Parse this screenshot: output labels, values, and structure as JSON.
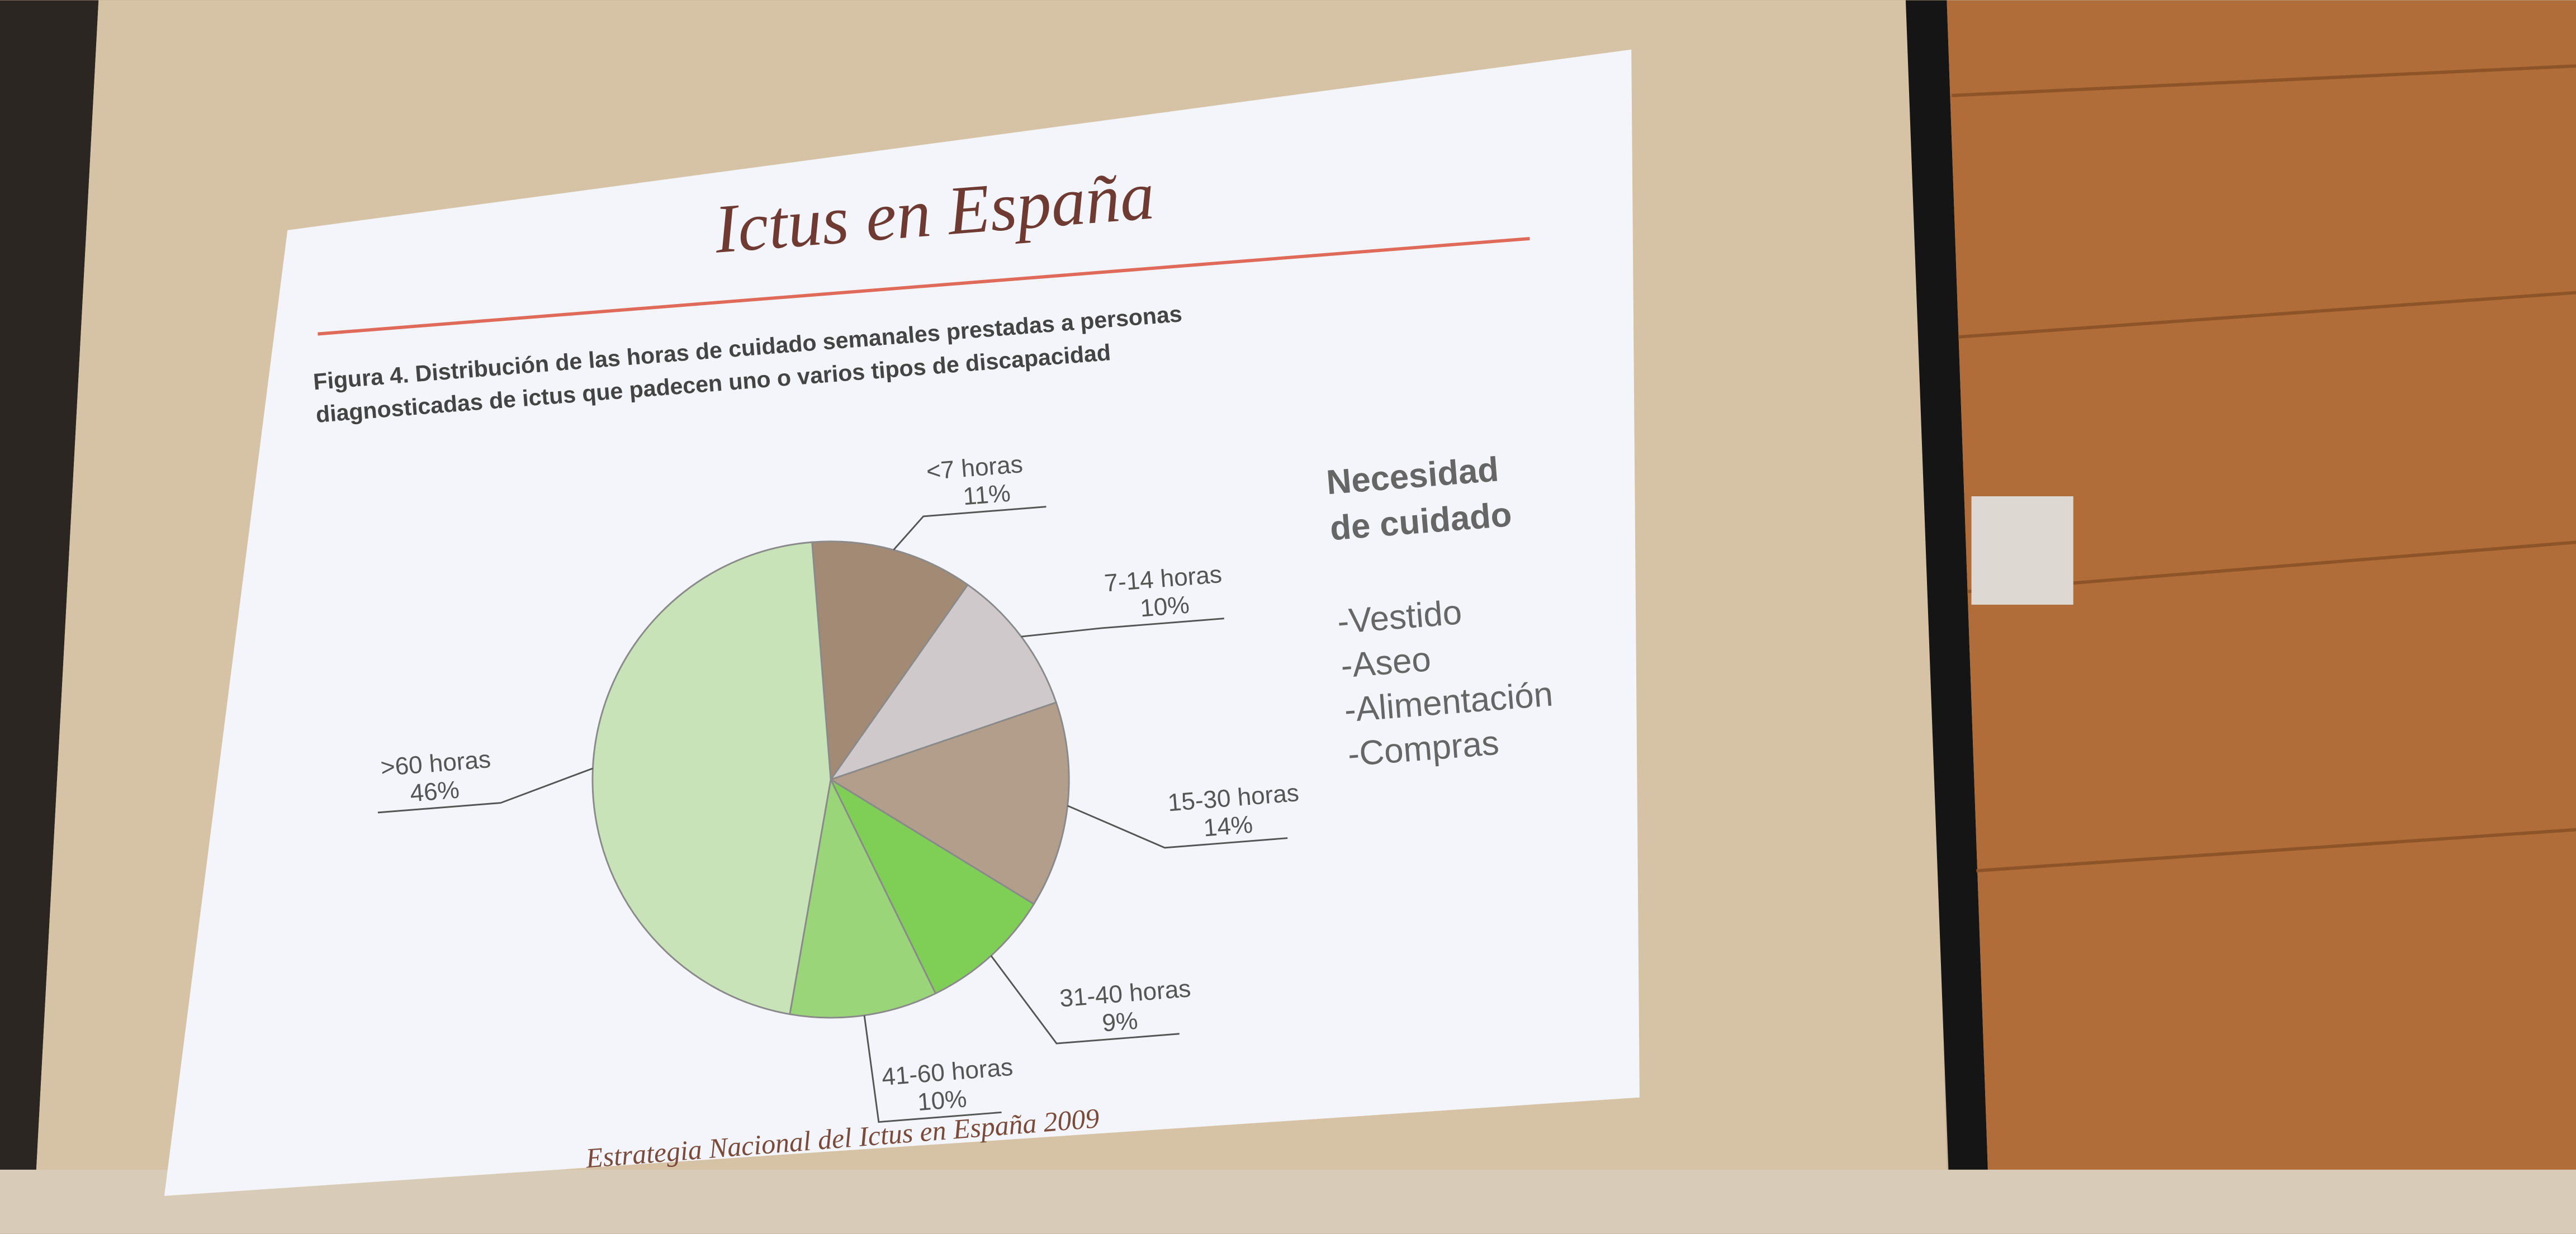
{
  "chart_data": {
    "type": "pie",
    "title": "Ictus en España",
    "caption": [
      "Figura 4. Distribución de las horas de cuidado semanales prestadas a personas",
      "diagnosticadas de ictus que padecen uno o varios tipos de discapacidad"
    ],
    "categories": [
      "<7 horas",
      "7-14 horas",
      "15-30 horas",
      "31-40 horas",
      "41-60 horas",
      ">60 horas"
    ],
    "values": [
      11,
      10,
      14,
      9,
      10,
      46
    ],
    "value_labels": [
      "11%",
      "10%",
      "14%",
      "9%",
      "10%",
      "46%"
    ],
    "colors": [
      "#a28a74",
      "#cfc9cb",
      "#b39d8b",
      "#7fcf57",
      "#9ad57a",
      "#c9e3b9"
    ],
    "side_heading": [
      "Necesidad",
      "de cuidado"
    ],
    "side_list": [
      "-Vestido",
      "-Aseo",
      "-Alimentación",
      "-Compras"
    ],
    "source": "Estrategia Nacional del Ictus en España 2009"
  }
}
